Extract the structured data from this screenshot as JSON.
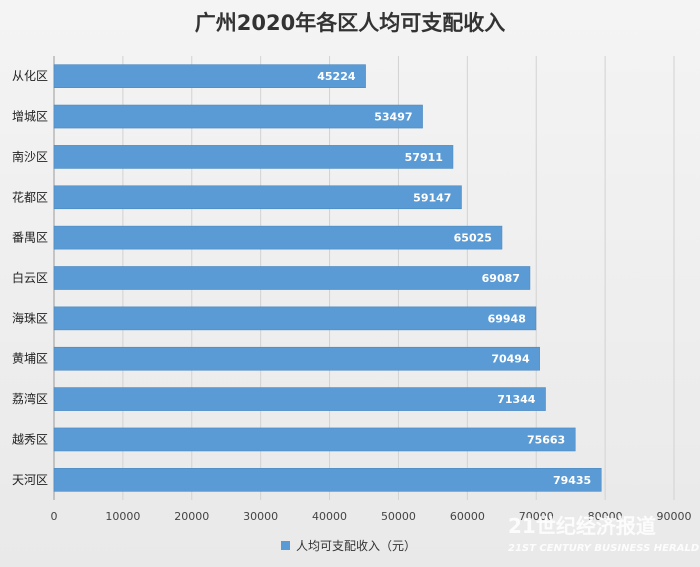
{
  "chart_data": {
    "type": "bar",
    "orientation": "horizontal",
    "title": "广州2020年各区人均可支配收入",
    "categories": [
      "从化区",
      "增城区",
      "南沙区",
      "花都区",
      "番禺区",
      "白云区",
      "海珠区",
      "黄埔区",
      "荔湾区",
      "越秀区",
      "天河区"
    ],
    "series": [
      {
        "name": "人均可支配收入（元）",
        "values": [
          45224,
          53497,
          57911,
          59147,
          65025,
          69087,
          69948,
          70494,
          71344,
          75663,
          79435
        ]
      }
    ],
    "xlim": [
      0,
      90000
    ],
    "ticks": [
      0,
      10000,
      20000,
      30000,
      40000,
      50000,
      60000,
      70000,
      80000,
      90000
    ],
    "grid": true,
    "legend_position": "bottom",
    "bar_color": "#5b9bd5"
  },
  "watermark": {
    "main": "21世纪经济报道",
    "sub": "21ST CENTURY BUSINESS HERALD"
  }
}
